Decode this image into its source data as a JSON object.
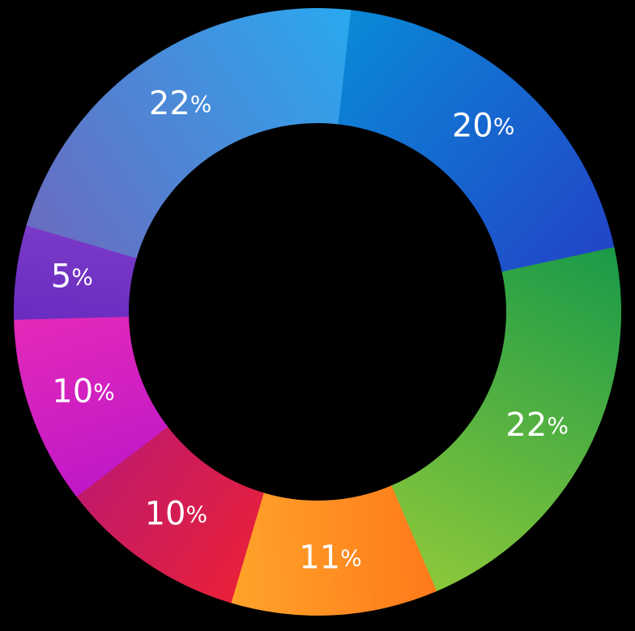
{
  "chart_data": {
    "type": "pie",
    "variant": "donut",
    "title": "",
    "legend": "none",
    "unit": "%",
    "slices": [
      {
        "label": "20",
        "value": 20,
        "color_start": "#0a8ad6",
        "color_end": "#2244c8"
      },
      {
        "label": "22",
        "value": 22,
        "color_start": "#1a9a48",
        "color_end": "#8cc83a"
      },
      {
        "label": "11",
        "value": 11,
        "color_start": "#ff7a1a",
        "color_end": "#ffa42a"
      },
      {
        "label": "10",
        "value": 10,
        "color_start": "#e8203a",
        "color_end": "#c01a6a"
      },
      {
        "label": "10",
        "value": 10,
        "color_start": "#c018c8",
        "color_end": "#e42ab8"
      },
      {
        "label": "5",
        "value": 5,
        "color_start": "#6a2cc0",
        "color_end": "#7a3ac8"
      },
      {
        "label": "22",
        "value": 22,
        "color_start": "#6a6cc0",
        "color_end": "#2aa8f0"
      }
    ],
    "center_color": "#000000"
  }
}
